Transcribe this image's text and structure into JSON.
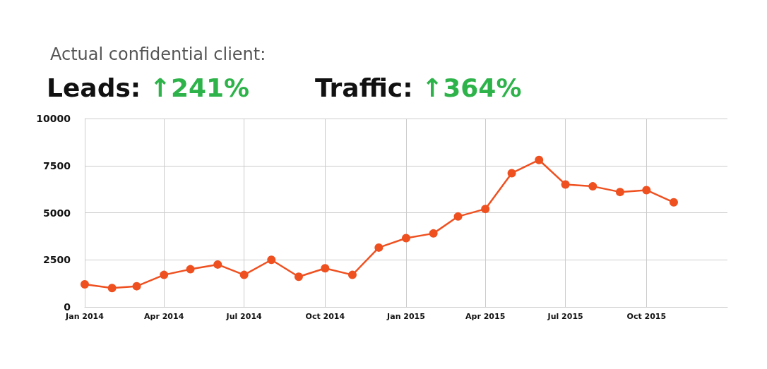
{
  "chart_data": {
    "type": "line",
    "title": "Actual confidential client:",
    "annotations": [
      "Leads: ↑241%",
      "Traffic: ↑364%"
    ],
    "x": [
      "2014-01-01",
      "2014-02-01",
      "2014-03-01",
      "2014-04-01",
      "2014-05-01",
      "2014-06-01",
      "2014-07-01",
      "2014-08-01",
      "2014-09-01",
      "2014-10-01",
      "2014-11-01",
      "2014-12-01",
      "2015-01-01",
      "2015-02-01",
      "2015-03-01",
      "2015-04-01",
      "2015-05-01",
      "2015-06-01",
      "2015-07-01",
      "2015-08-01",
      "2015-09-01",
      "2015-10-01",
      "2015-11-01"
    ],
    "series": [
      {
        "color": "#ef5020",
        "values": [
          1200,
          1000,
          1100,
          1700,
          2000,
          2250,
          1700,
          2500,
          1600,
          2050,
          1700,
          3150,
          3650,
          3900,
          4800,
          5200,
          7100,
          7800,
          6500,
          6400,
          6100,
          6200,
          5550
        ]
      }
    ],
    "xlim": [
      "2014-01-01",
      "2016-01-01"
    ],
    "xticks": [
      {
        "value": "2014-01-01",
        "label": "Jan 2014"
      },
      {
        "value": "2014-04-01",
        "label": "Apr 2014"
      },
      {
        "value": "2014-07-01",
        "label": "Jul 2014"
      },
      {
        "value": "2014-10-01",
        "label": "Oct 2014"
      },
      {
        "value": "2015-01-01",
        "label": "Jan 2015"
      },
      {
        "value": "2015-04-01",
        "label": "Apr 2015"
      },
      {
        "value": "2015-07-01",
        "label": "Jul 2015"
      },
      {
        "value": "2015-10-01",
        "label": "Oct 2015"
      }
    ],
    "ylim": [
      0,
      10000
    ],
    "yticks": [
      0,
      2500,
      5000,
      7500,
      10000
    ],
    "grid": true,
    "marker": "circle",
    "line_style": "solid"
  }
}
